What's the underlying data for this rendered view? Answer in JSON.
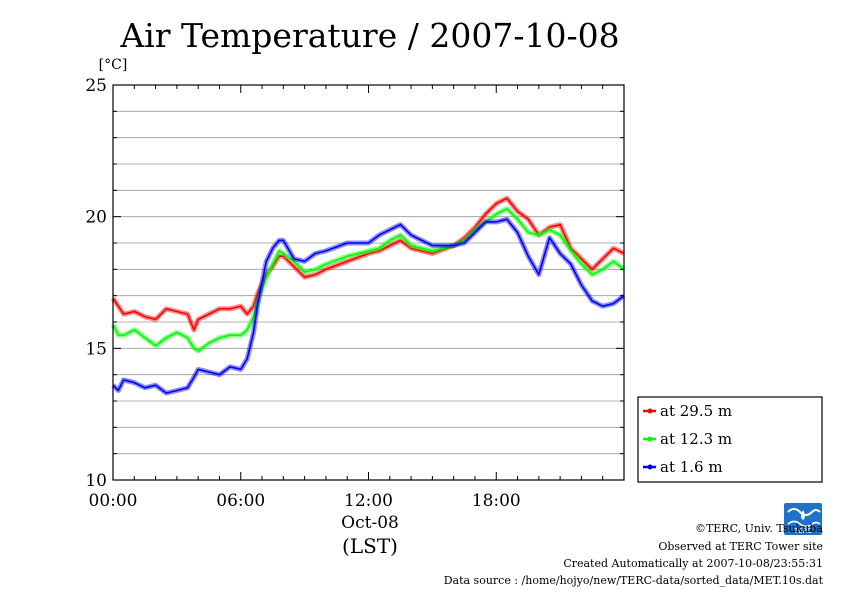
{
  "chart_data": {
    "type": "line",
    "title": "Air Temperature / 2007-10-08",
    "ylabel": "[°C]",
    "xlabel": "(LST)",
    "x_date_label": "Oct-08",
    "xlim_hours": [
      0,
      24
    ],
    "ylim": [
      10,
      25
    ],
    "yticks": [
      10,
      15,
      20,
      25
    ],
    "xticks": [
      {
        "label": "00:00",
        "hour": 0
      },
      {
        "label": "06:00",
        "hour": 6
      },
      {
        "label": "12:00",
        "hour": 12
      },
      {
        "label": "18:00",
        "hour": 18
      }
    ],
    "grid": true,
    "legend_position": "right",
    "series": [
      {
        "name": "at 29.5 m",
        "color": "#ff0000",
        "x": [
          0,
          0.25,
          0.5,
          1,
          1.5,
          2,
          2.5,
          3,
          3.5,
          3.8,
          4,
          4.5,
          5,
          5.5,
          6,
          6.3,
          6.6,
          6.8,
          7.2,
          7.5,
          7.8,
          8,
          8.5,
          9,
          9.5,
          10,
          11,
          12,
          12.5,
          13,
          13.5,
          14,
          15,
          16,
          16.5,
          17,
          17.5,
          18,
          18.5,
          19,
          19.5,
          20,
          20.5,
          21,
          21.5,
          22,
          22.5,
          23,
          23.5,
          24
        ],
        "y": [
          16.9,
          16.6,
          16.3,
          16.4,
          16.2,
          16.1,
          16.5,
          16.4,
          16.3,
          15.7,
          16.1,
          16.3,
          16.5,
          16.5,
          16.6,
          16.3,
          16.6,
          17.1,
          17.8,
          18.1,
          18.5,
          18.5,
          18.1,
          17.7,
          17.8,
          18.0,
          18.3,
          18.6,
          18.7,
          18.9,
          19.1,
          18.8,
          18.6,
          18.9,
          19.2,
          19.6,
          20.1,
          20.5,
          20.7,
          20.2,
          19.9,
          19.3,
          19.6,
          19.7,
          18.8,
          18.4,
          18.0,
          18.4,
          18.8,
          18.6
        ]
      },
      {
        "name": "at 12.3 m",
        "color": "#00ff00",
        "x": [
          0,
          0.25,
          0.5,
          1,
          1.5,
          2,
          2.5,
          3,
          3.5,
          3.8,
          4,
          4.5,
          5,
          5.5,
          6,
          6.3,
          6.6,
          6.8,
          7.2,
          7.5,
          7.8,
          8,
          8.5,
          9,
          9.5,
          10,
          11,
          12,
          12.5,
          13,
          13.5,
          14,
          15,
          16,
          16.5,
          17,
          17.5,
          18,
          18.5,
          19,
          19.5,
          20,
          20.5,
          21,
          21.5,
          22,
          22.5,
          23,
          23.5,
          24
        ],
        "y": [
          15.9,
          15.5,
          15.5,
          15.7,
          15.4,
          15.1,
          15.4,
          15.6,
          15.4,
          15.0,
          14.9,
          15.2,
          15.4,
          15.5,
          15.5,
          15.7,
          16.2,
          16.8,
          17.7,
          18.2,
          18.7,
          18.6,
          18.3,
          17.9,
          18.0,
          18.2,
          18.5,
          18.7,
          18.8,
          19.1,
          19.3,
          18.9,
          18.7,
          18.9,
          19.1,
          19.5,
          19.8,
          20.1,
          20.3,
          19.9,
          19.4,
          19.3,
          19.5,
          19.3,
          18.7,
          18.2,
          17.8,
          18.0,
          18.3,
          18.0
        ]
      },
      {
        "name": "at 1.6 m",
        "color": "#0000ff",
        "x": [
          0,
          0.25,
          0.5,
          1,
          1.5,
          2,
          2.5,
          3,
          3.5,
          3.8,
          4,
          4.5,
          5,
          5.5,
          6,
          6.3,
          6.6,
          6.8,
          7.2,
          7.5,
          7.8,
          8,
          8.5,
          9,
          9.5,
          10,
          11,
          12,
          12.5,
          13,
          13.5,
          14,
          15,
          16,
          16.5,
          17,
          17.5,
          18,
          18.5,
          19,
          19.5,
          20,
          20.5,
          21,
          21.5,
          22,
          22.5,
          23,
          23.5,
          24
        ],
        "y": [
          13.6,
          13.4,
          13.8,
          13.7,
          13.5,
          13.6,
          13.3,
          13.4,
          13.5,
          13.9,
          14.2,
          14.1,
          14.0,
          14.3,
          14.2,
          14.6,
          15.6,
          16.7,
          18.3,
          18.8,
          19.1,
          19.1,
          18.4,
          18.3,
          18.6,
          18.7,
          19.0,
          19.0,
          19.3,
          19.5,
          19.7,
          19.3,
          18.9,
          18.9,
          19.0,
          19.4,
          19.8,
          19.8,
          19.9,
          19.4,
          18.5,
          17.8,
          19.2,
          18.6,
          18.2,
          17.4,
          16.8,
          16.6,
          16.7,
          17.0
        ]
      }
    ]
  },
  "footer": {
    "copyright": "©TERC, Univ. Tsukuba",
    "observed": "Observed at TERC Tower site",
    "created": "Created Automatically at 2007-10-08/23:55:31",
    "source": "Data source : /home/hojyo/new/TERC-data/sorted_data/MET.10s.dat",
    "logo_text": "TERC"
  }
}
